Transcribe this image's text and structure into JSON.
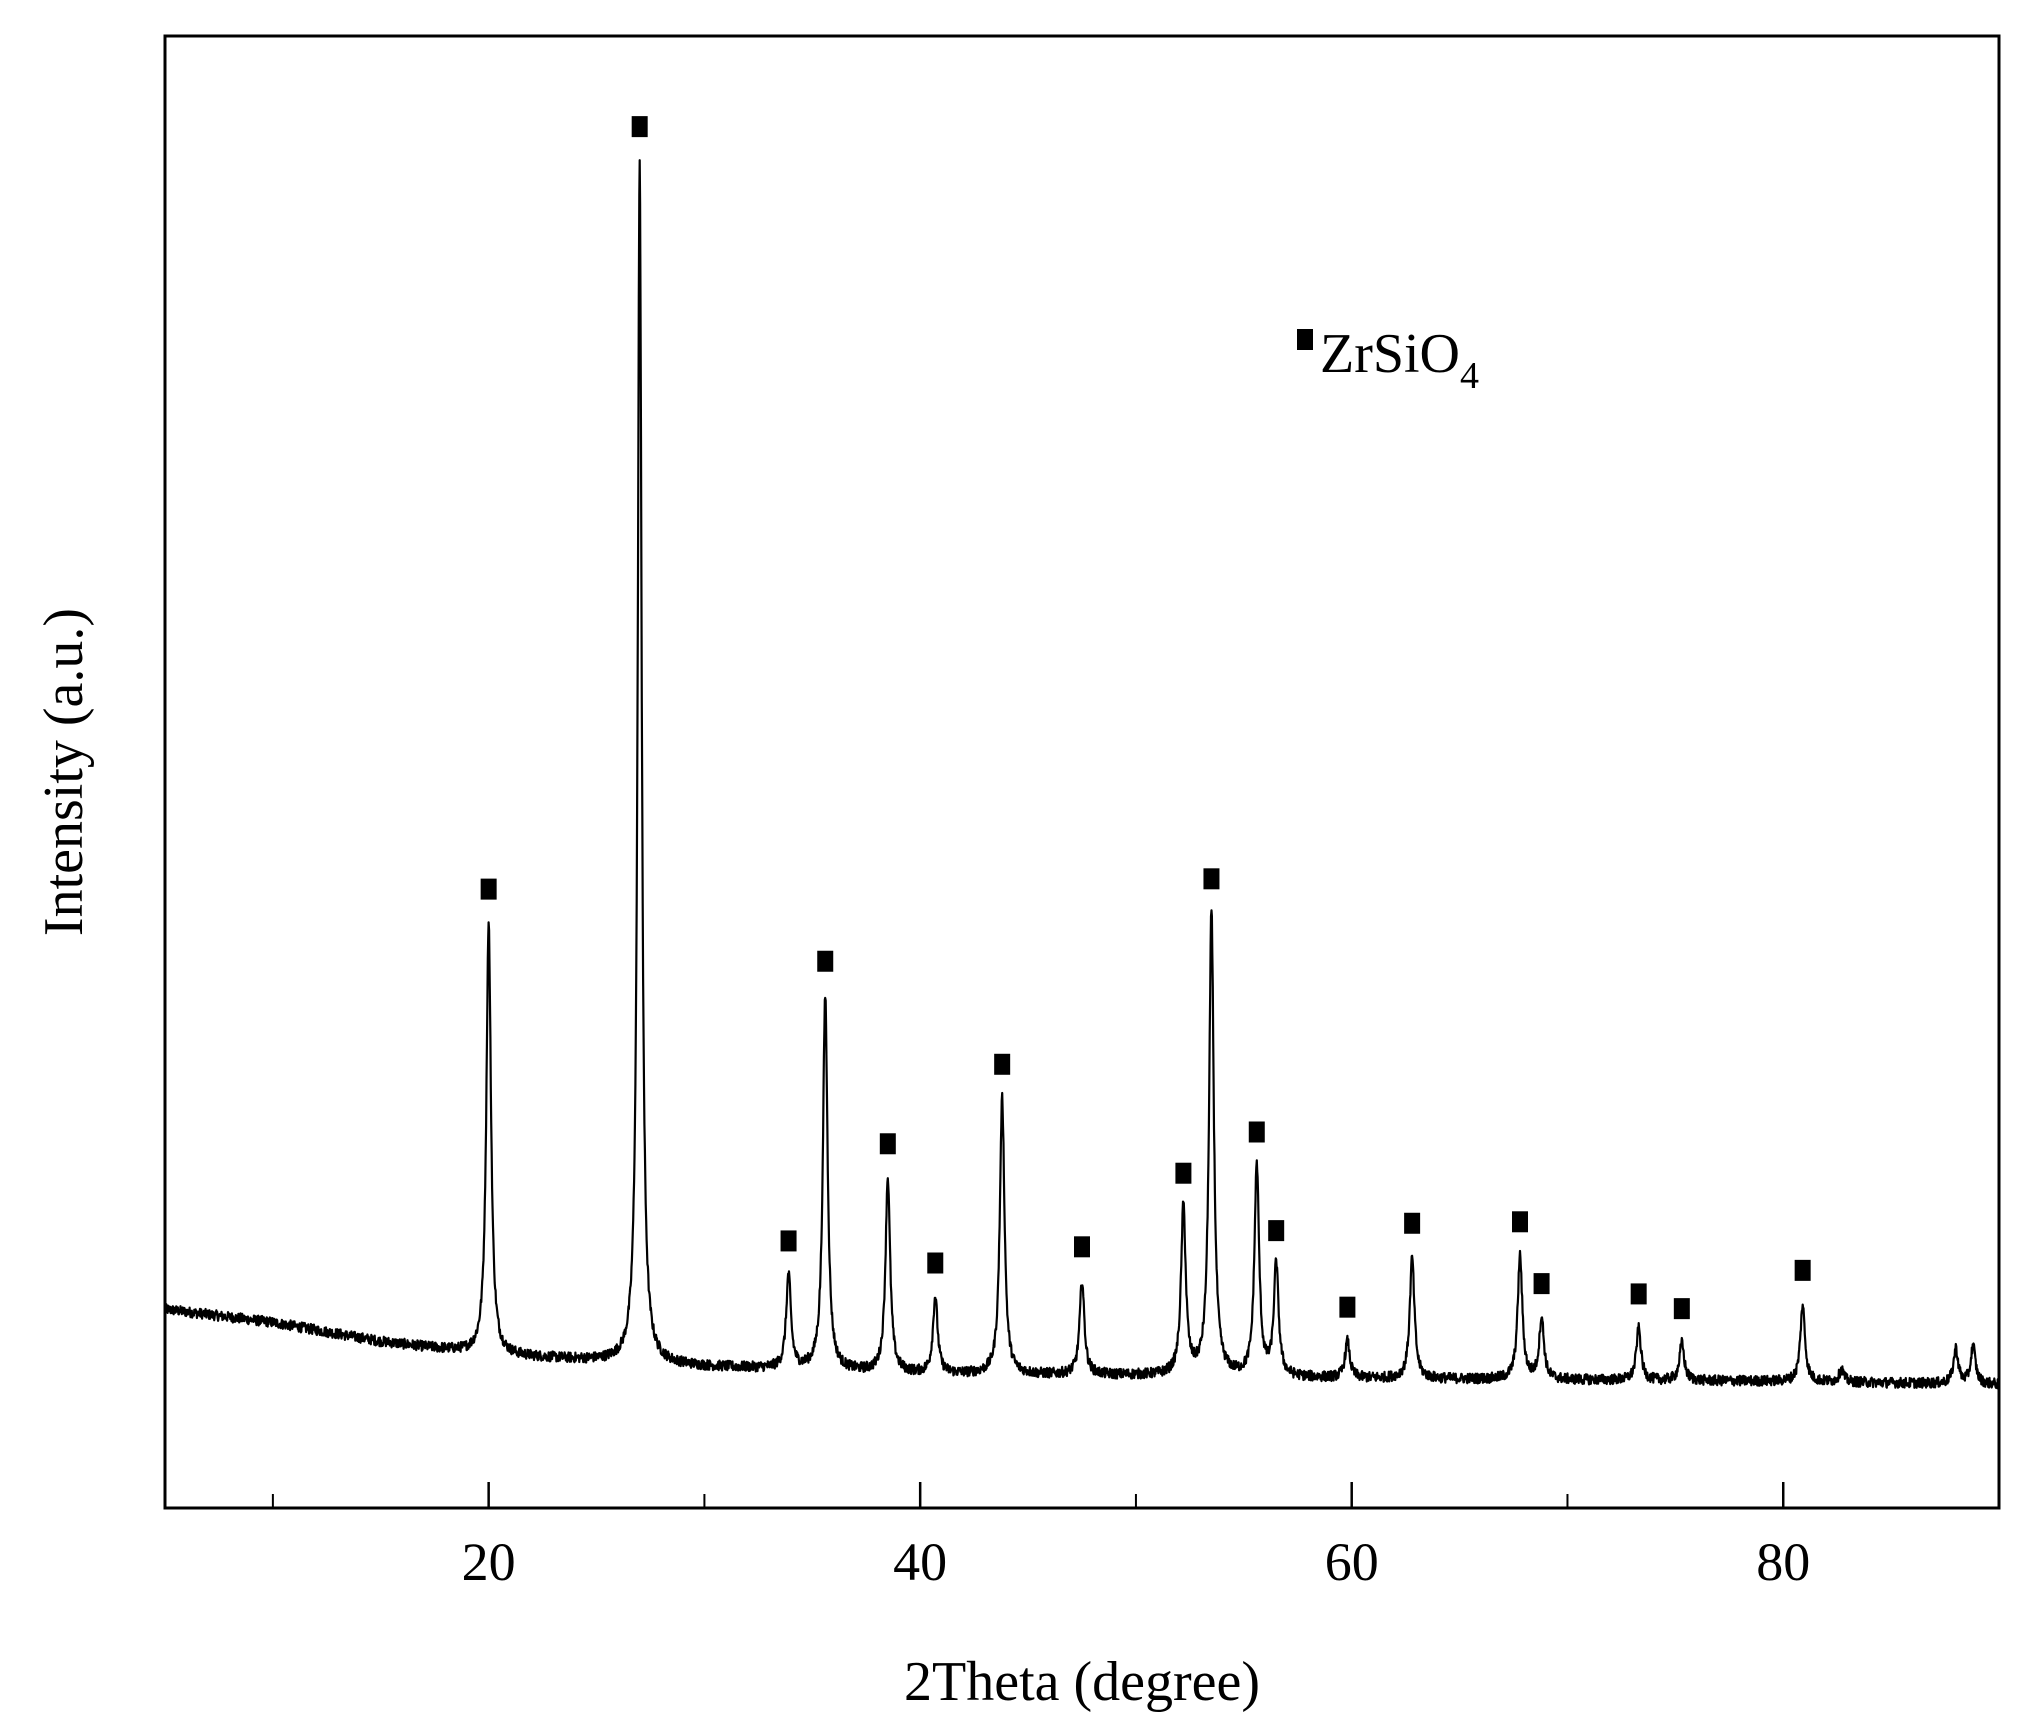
{
  "chart_data": {
    "type": "line",
    "title": "",
    "xlabel": "2Theta (degree)",
    "ylabel": "Intensity (a.u.)",
    "xlim": [
      5,
      90
    ],
    "ylim": [
      0,
      100
    ],
    "x_major_ticks": [
      20,
      40,
      60,
      80
    ],
    "x_minor_ticks": [
      10,
      30,
      50,
      70,
      90
    ],
    "y_ticks_shown": false,
    "grid": false,
    "legend": {
      "placement": "top-right",
      "entries": [
        {
          "marker": "filled-square",
          "label": "ZrSiO",
          "subscript": "4"
        }
      ]
    },
    "series": [
      {
        "color": "#000000",
        "baseline": [
          [
            5,
            13.5
          ],
          [
            10,
            12.6
          ],
          [
            15,
            11.3
          ],
          [
            20,
            10.4
          ],
          [
            25,
            10.0
          ],
          [
            30,
            9.6
          ],
          [
            40,
            9.1
          ],
          [
            50,
            9.0
          ],
          [
            60,
            8.8
          ],
          [
            70,
            8.7
          ],
          [
            80,
            8.6
          ],
          [
            90,
            8.4
          ]
        ],
        "peaks": [
          {
            "x": 20.0,
            "y": 39.7,
            "marked": true
          },
          {
            "x": 27.0,
            "y": 91.5,
            "marked": true
          },
          {
            "x": 33.9,
            "y": 15.8,
            "marked": true
          },
          {
            "x": 35.6,
            "y": 34.8,
            "marked": true
          },
          {
            "x": 38.5,
            "y": 22.4,
            "marked": true
          },
          {
            "x": 40.7,
            "y": 14.3,
            "marked": true
          },
          {
            "x": 43.8,
            "y": 27.8,
            "marked": true
          },
          {
            "x": 47.5,
            "y": 15.4,
            "marked": true
          },
          {
            "x": 52.2,
            "y": 20.4,
            "marked": true
          },
          {
            "x": 53.5,
            "y": 40.4,
            "marked": true
          },
          {
            "x": 55.6,
            "y": 23.2,
            "marked": true
          },
          {
            "x": 56.5,
            "y": 16.5,
            "marked": true
          },
          {
            "x": 59.8,
            "y": 11.3,
            "marked": true
          },
          {
            "x": 62.8,
            "y": 17.0,
            "marked": true
          },
          {
            "x": 67.8,
            "y": 17.1,
            "marked": true
          },
          {
            "x": 68.8,
            "y": 12.9,
            "marked": true
          },
          {
            "x": 73.3,
            "y": 12.2,
            "marked": true
          },
          {
            "x": 75.3,
            "y": 11.2,
            "marked": true
          },
          {
            "x": 80.9,
            "y": 13.8,
            "marked": true
          },
          {
            "x": 82.7,
            "y": 9.4,
            "marked": false
          },
          {
            "x": 88.0,
            "y": 10.8,
            "marked": false
          },
          {
            "x": 88.8,
            "y": 11.0,
            "marked": false
          }
        ]
      }
    ]
  }
}
